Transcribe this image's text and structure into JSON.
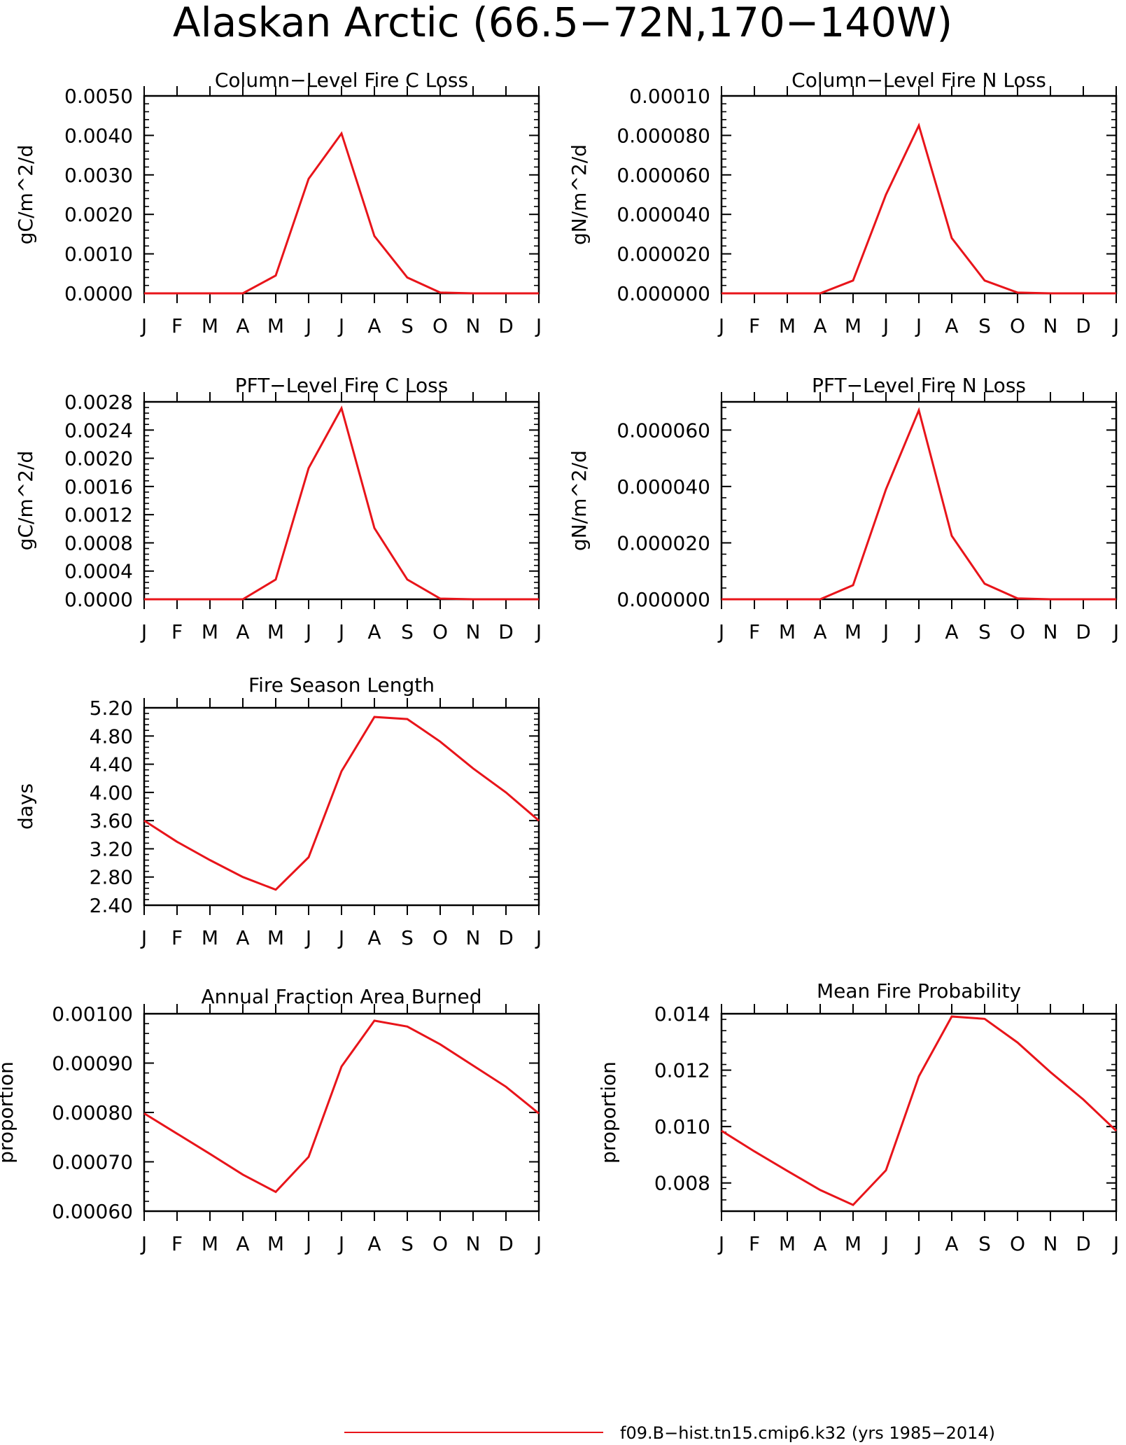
{
  "figure": {
    "title": "Alaskan Arctic (66.5−72N,170−140W)",
    "legend": {
      "label": "f09.B−hist.tn15.cmip6.k32 (yrs 1985−2014)",
      "color": "#e8141a"
    }
  },
  "colors": {
    "series": "#e8141a",
    "axes": "#000000"
  },
  "chart_data": [
    {
      "id": "col-c",
      "type": "line",
      "title": "Column−Level Fire C Loss",
      "ylabel": "gC/m^2/d",
      "xlabel": "",
      "x": [
        "J",
        "F",
        "M",
        "A",
        "M",
        "J",
        "J",
        "A",
        "S",
        "O",
        "N",
        "D",
        "J"
      ],
      "ylim": [
        0.0,
        0.005
      ],
      "yticks": [
        "0.0000",
        "0.0010",
        "0.0020",
        "0.0030",
        "0.0040",
        "0.0050"
      ],
      "yminor": 4,
      "series": [
        {
          "values": [
            0,
            0,
            0,
            0,
            0.00045,
            0.0029,
            0.00405,
            0.00145,
            0.0004,
            2e-05,
            0,
            0,
            0
          ]
        }
      ]
    },
    {
      "id": "col-n",
      "type": "line",
      "title": "Column−Level Fire N Loss",
      "ylabel": "gN/m^2/d",
      "xlabel": "",
      "x": [
        "J",
        "F",
        "M",
        "A",
        "M",
        "J",
        "J",
        "A",
        "S",
        "O",
        "N",
        "D",
        "J"
      ],
      "ylim": [
        0.0,
        0.0001
      ],
      "yticks": [
        "0.000000",
        "0.000020",
        "0.000040",
        "0.000060",
        "0.000080",
        "0.00010"
      ],
      "yminor": 4,
      "series": [
        {
          "values": [
            0,
            0,
            0,
            0,
            6.5e-06,
            5e-05,
            8.5e-05,
            2.8e-05,
            6.5e-06,
            4e-07,
            0,
            0,
            0
          ]
        }
      ]
    },
    {
      "id": "pft-c",
      "type": "line",
      "title": "PFT−Level Fire C Loss",
      "ylabel": "gC/m^2/d",
      "xlabel": "",
      "x": [
        "J",
        "F",
        "M",
        "A",
        "M",
        "J",
        "J",
        "A",
        "S",
        "O",
        "N",
        "D",
        "J"
      ],
      "ylim": [
        0.0,
        0.0028
      ],
      "yticks": [
        "0.0000",
        "0.0004",
        "0.0008",
        "0.0012",
        "0.0016",
        "0.0020",
        "0.0024",
        "0.0028"
      ],
      "yminor": 4,
      "series": [
        {
          "values": [
            0,
            0,
            0,
            0,
            0.00028,
            0.00186,
            0.00271,
            0.00101,
            0.00028,
            1e-05,
            0,
            0,
            0
          ]
        }
      ]
    },
    {
      "id": "pft-n",
      "type": "line",
      "title": "PFT−Level Fire N Loss",
      "ylabel": "gN/m^2/d",
      "xlabel": "",
      "x": [
        "J",
        "F",
        "M",
        "A",
        "M",
        "J",
        "J",
        "A",
        "S",
        "O",
        "N",
        "D",
        "J"
      ],
      "ylim": [
        0.0,
        7e-05
      ],
      "yticks": [
        "0.000000",
        "0.000020",
        "0.000040",
        "0.000060"
      ],
      "ytickvals": [
        0,
        2e-05,
        4e-05,
        6e-05
      ],
      "yminor": 4,
      "series": [
        {
          "values": [
            0,
            0,
            0,
            0,
            5e-06,
            3.9e-05,
            6.7e-05,
            2.25e-05,
            5.5e-06,
            3e-07,
            0,
            0,
            0
          ]
        }
      ]
    },
    {
      "id": "season",
      "type": "line",
      "title": "Fire Season Length",
      "ylabel": "days",
      "xlabel": "",
      "x": [
        "J",
        "F",
        "M",
        "A",
        "M",
        "J",
        "J",
        "A",
        "S",
        "O",
        "N",
        "D",
        "J"
      ],
      "ylim": [
        2.4,
        5.2
      ],
      "yticks": [
        "2.40",
        "2.80",
        "3.20",
        "3.60",
        "4.00",
        "4.40",
        "4.80",
        "5.20"
      ],
      "yminor": 4,
      "series": [
        {
          "values": [
            3.6,
            3.3,
            3.04,
            2.8,
            2.62,
            3.08,
            4.3,
            5.07,
            5.04,
            4.72,
            4.34,
            4.0,
            3.6
          ]
        }
      ]
    },
    {
      "id": "afab",
      "type": "line",
      "title": "Annual Fraction Area Burned",
      "ylabel": "proportion",
      "xlabel": "",
      "x": [
        "J",
        "F",
        "M",
        "A",
        "M",
        "J",
        "J",
        "A",
        "S",
        "O",
        "N",
        "D",
        "J"
      ],
      "ylim": [
        0.0006,
        0.001
      ],
      "yticks": [
        "0.00060",
        "0.00070",
        "0.00080",
        "0.00090",
        "0.00100"
      ],
      "yminor": 4,
      "series": [
        {
          "values": [
            0.000798,
            0.000757,
            0.000716,
            0.000674,
            0.000639,
            0.00071,
            0.000893,
            0.000986,
            0.000974,
            0.000938,
            0.000895,
            0.000852,
            0.000798
          ]
        }
      ]
    },
    {
      "id": "mfp",
      "type": "line",
      "title": "Mean Fire Probability",
      "ylabel": "proportion",
      "xlabel": "",
      "x": [
        "J",
        "F",
        "M",
        "A",
        "M",
        "J",
        "J",
        "A",
        "S",
        "O",
        "N",
        "D",
        "J"
      ],
      "ylim": [
        0.007,
        0.014
      ],
      "yticks": [
        "0.008",
        "0.010",
        "0.012",
        "0.014"
      ],
      "ytickvals": [
        0.008,
        0.01,
        0.012,
        0.014
      ],
      "yminor": 4,
      "series": [
        {
          "values": [
            0.00985,
            0.00912,
            0.00843,
            0.00775,
            0.00722,
            0.00845,
            0.01178,
            0.0139,
            0.01382,
            0.01298,
            0.01193,
            0.01096,
            0.00985
          ]
        }
      ]
    }
  ]
}
